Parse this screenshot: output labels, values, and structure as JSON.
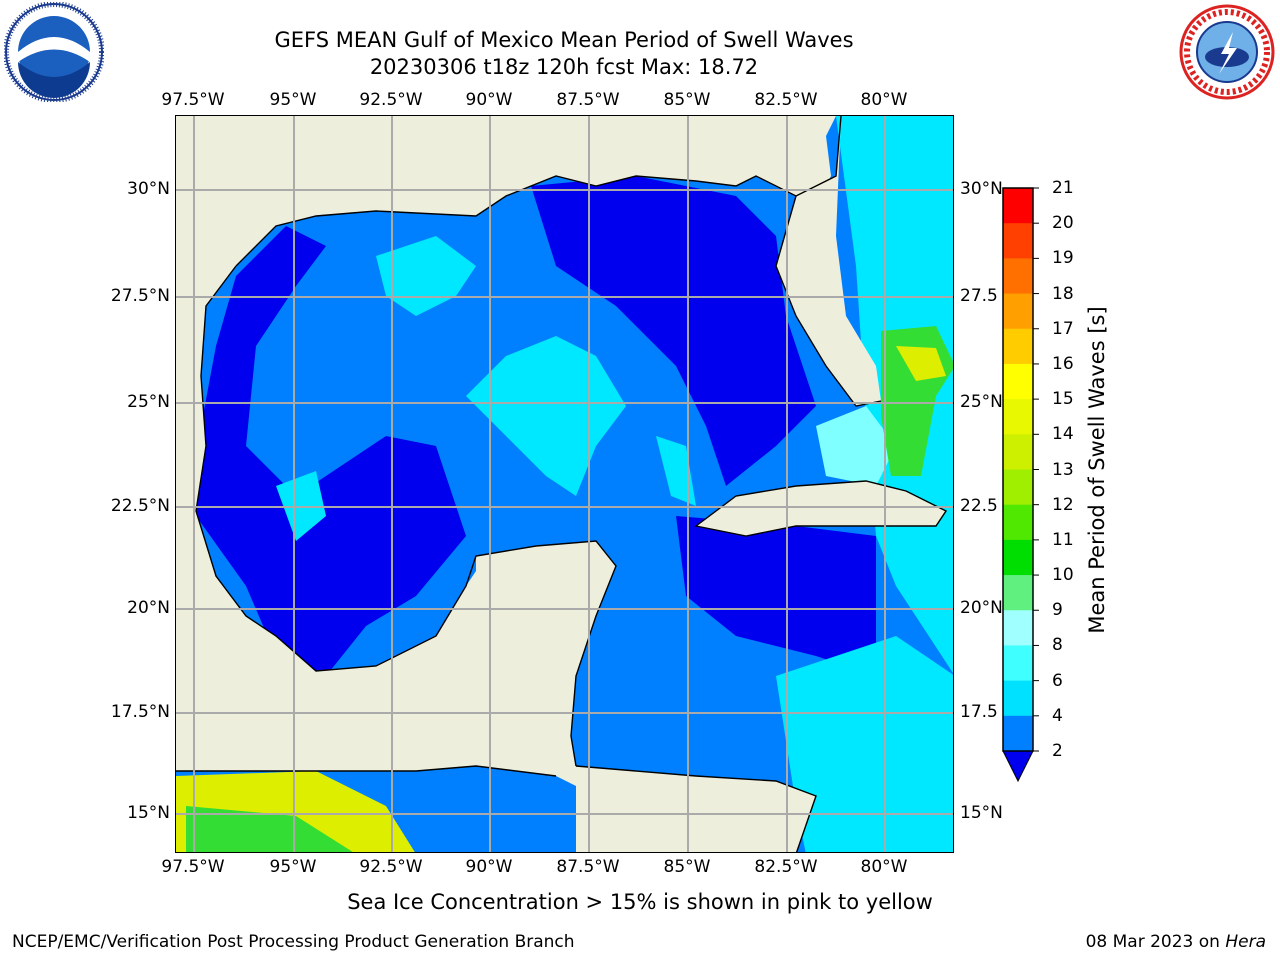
{
  "title": {
    "line1": "GEFS MEAN Gulf of Mexico Mean Period of Swell Waves",
    "line2": "20230306 t18z 120h fcst   Max: 18.72"
  },
  "logos": {
    "left": "NOAA",
    "right": "NATIONAL WEATHER SERVICE"
  },
  "axes": {
    "lon_ticks_top": [
      "97.5°W",
      "95°W",
      "92.5°W",
      "90°W",
      "87.5°W",
      "85°W",
      "82.5°W",
      "80°W"
    ],
    "lon_ticks_bottom": [
      "97.5°W",
      "95°W",
      "92.5°W",
      "90°W",
      "87.5°W",
      "85°W",
      "82.5°W",
      "80°W"
    ],
    "lat_ticks_left": [
      "30°N",
      "27.5°N",
      "25°N",
      "22.5°N",
      "20°N",
      "17.5°N",
      "15°N"
    ],
    "lat_ticks_right": [
      "30°N",
      "27.5",
      "25°N",
      "22.5",
      "20°N",
      "17.5",
      "15°N"
    ]
  },
  "colorbar": {
    "title": "Mean Period of Swell Waves [s]",
    "labels": [
      "2",
      "4",
      "6",
      "8",
      "9",
      "10",
      "11",
      "12",
      "13",
      "14",
      "15",
      "16",
      "17",
      "18",
      "19",
      "20",
      "21"
    ],
    "colors": [
      "#0000ee",
      "#0080ff",
      "#00e0ff",
      "#40ffff",
      "#a0ffff",
      "#60f080",
      "#00dd00",
      "#50e800",
      "#a0ee00",
      "#ccf000",
      "#e8f800",
      "#ffff00",
      "#ffcc00",
      "#ffa000",
      "#ff7000",
      "#ff4000",
      "#ff0000"
    ]
  },
  "map_colors": {
    "land": "#eeeedc",
    "sea_dark": "#0000ee",
    "sea_mid": "#0080ff",
    "sea_cyan": "#00e8ff",
    "sea_light": "#7fffff",
    "green": "#33dd33",
    "yellow": "#ddee00",
    "grid": "#aaaaaa"
  },
  "footer": {
    "note": "Sea Ice Concentration > 15% is shown in pink to yellow",
    "credit": "NCEP/EMC/Verification Post Processing Product Generation Branch",
    "date": "08 Mar 2023 on ",
    "host": "Hera"
  }
}
